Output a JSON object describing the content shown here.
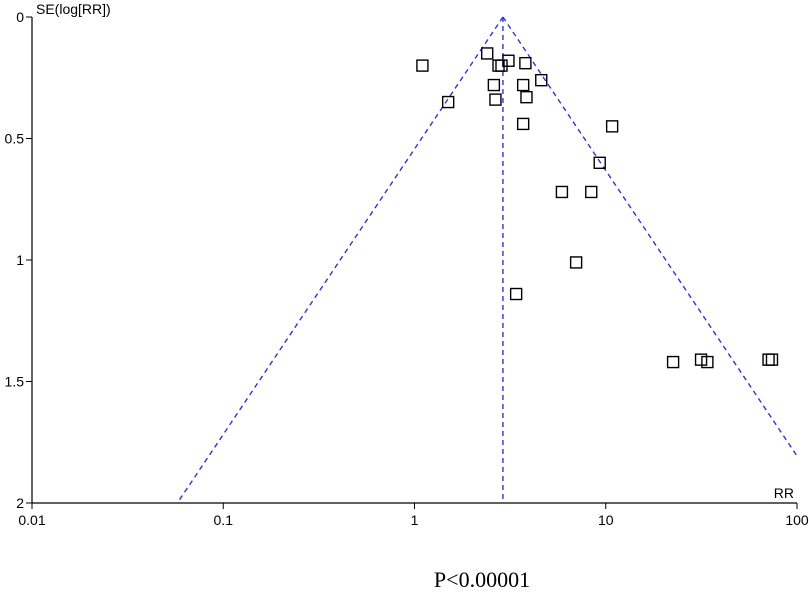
{
  "chart_data": {
    "type": "scatter",
    "subtype": "funnel",
    "ylabel": "SE(log[RR])",
    "xlabel": "RR",
    "x_scale": "log",
    "xlim": [
      0.01,
      100
    ],
    "ylim": [
      0,
      2
    ],
    "y_inverted": true,
    "x_ticks": [
      "0.01",
      "0.1",
      "1",
      "10",
      "100"
    ],
    "y_ticks": [
      "0",
      "0.5",
      "1",
      "1.5",
      "2"
    ],
    "pooled_rr": 2.9,
    "funnel_apex_se": 0,
    "funnel_limit_se": 2,
    "grid": false,
    "legend": "none",
    "colors": {
      "funnel": "#3333cc",
      "points": "#000000",
      "axes": "#000000"
    },
    "points": [
      {
        "x": 1.1,
        "y": 0.2
      },
      {
        "x": 1.5,
        "y": 0.35
      },
      {
        "x": 2.4,
        "y": 0.15
      },
      {
        "x": 2.75,
        "y": 0.2
      },
      {
        "x": 2.85,
        "y": 0.2
      },
      {
        "x": 3.1,
        "y": 0.18
      },
      {
        "x": 3.8,
        "y": 0.19
      },
      {
        "x": 2.6,
        "y": 0.28
      },
      {
        "x": 2.65,
        "y": 0.34
      },
      {
        "x": 3.7,
        "y": 0.28
      },
      {
        "x": 3.85,
        "y": 0.33
      },
      {
        "x": 4.6,
        "y": 0.26
      },
      {
        "x": 3.7,
        "y": 0.44
      },
      {
        "x": 10.8,
        "y": 0.45
      },
      {
        "x": 9.3,
        "y": 0.6
      },
      {
        "x": 5.9,
        "y": 0.72
      },
      {
        "x": 8.4,
        "y": 0.72
      },
      {
        "x": 7.0,
        "y": 1.01
      },
      {
        "x": 3.4,
        "y": 1.14
      },
      {
        "x": 22.5,
        "y": 1.42
      },
      {
        "x": 31.5,
        "y": 1.41
      },
      {
        "x": 34.0,
        "y": 1.42
      },
      {
        "x": 71.0,
        "y": 1.41
      },
      {
        "x": 74.0,
        "y": 1.41
      }
    ]
  },
  "caption": "P<0.00001"
}
